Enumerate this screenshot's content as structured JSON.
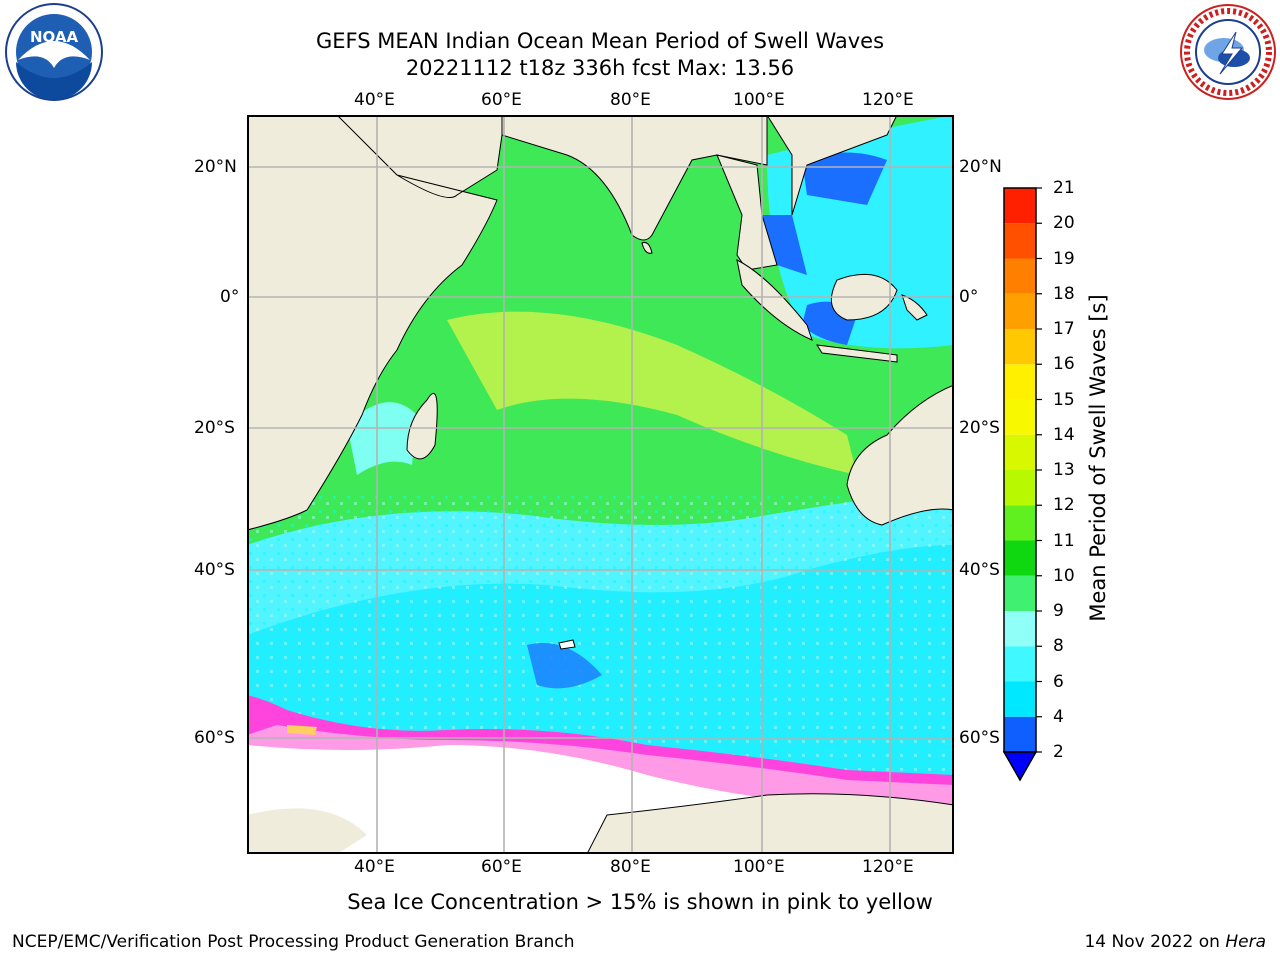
{
  "header": {
    "title_line1": "GEFS MEAN Indian Ocean Mean Period of Swell Waves",
    "title_line2": "20221112 t18z 336h fcst   Max: 13.56",
    "logo_left_text": "NOAA",
    "logo_right_text": "NATIONAL WEATHER SERVICE"
  },
  "map": {
    "lon_labels": [
      "40°E",
      "60°E",
      "80°E",
      "100°E",
      "120°E"
    ],
    "lat_labels": [
      "20°N",
      "0°",
      "20°S",
      "40°S",
      "60°S"
    ],
    "colorbar": {
      "label": "Mean Period of Swell Waves [s]",
      "ticks": [
        "2",
        "4",
        "6",
        "8",
        "9",
        "10",
        "11",
        "12",
        "13",
        "14",
        "15",
        "16",
        "17",
        "18",
        "19",
        "20",
        "21"
      ],
      "colors": [
        "#0f5fff",
        "#00e8ff",
        "#40f8ff",
        "#90fff8",
        "#40f070",
        "#10d810",
        "#60f020",
        "#b8f800",
        "#d8f800",
        "#f8f800",
        "#fff000",
        "#ffc800",
        "#ff9f00",
        "#ff7f00",
        "#ff5000",
        "#ff2000"
      ],
      "under_color": "#0000ff"
    },
    "colors": {
      "land": "#efecdc",
      "ice_land": "#ffffff",
      "grid": "#b3b3b3",
      "sea_ice_pink": "#ff44dd",
      "sea_ice_yellow": "#ffd060"
    }
  },
  "caption": "Sea Ice Concentration > 15% is shown in pink to yellow",
  "footer": {
    "left": "NCEP/EMC/Verification Post Processing Product Generation Branch",
    "right_prefix": "14 Nov 2022 on ",
    "right_host": "Hera"
  }
}
